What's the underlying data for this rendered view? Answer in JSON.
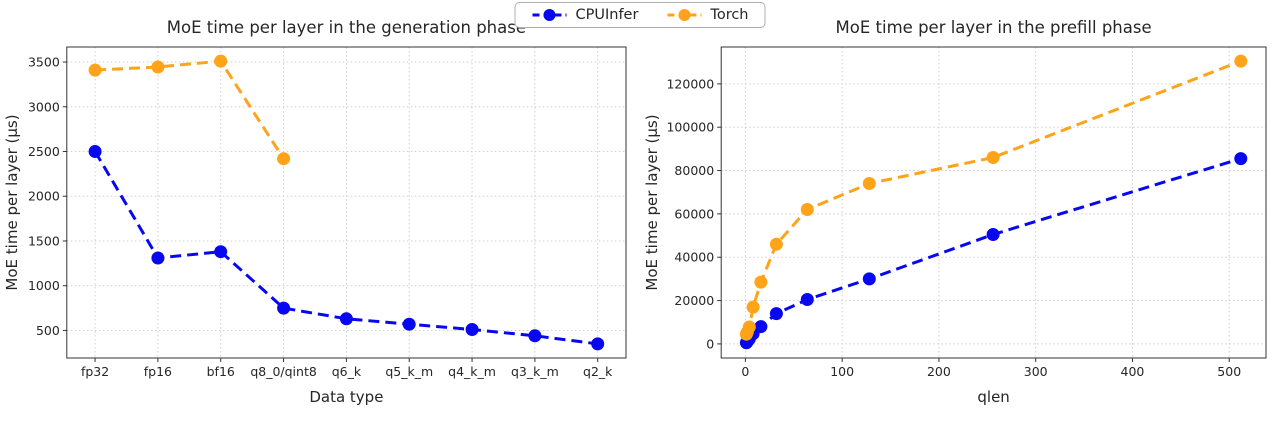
{
  "legend": {
    "items": [
      {
        "label": "CPUInfer",
        "color": "#0707f0"
      },
      {
        "label": "Torch",
        "color": "#ffa319"
      }
    ]
  },
  "chart_data": [
    {
      "type": "line",
      "title": "MoE time per layer in the generation phase",
      "xlabel": "Data type",
      "ylabel": "MoE time per layer (μs)",
      "categories": [
        "fp32",
        "fp16",
        "bf16",
        "q8_0/qint8",
        "q6_k",
        "q5_k_m",
        "q4_k_m",
        "q3_k_m",
        "q2_k"
      ],
      "yticks": [
        500,
        1000,
        1500,
        2000,
        2500,
        3000,
        3500
      ],
      "xlim": [
        -0.45,
        8.45
      ],
      "ylim": [
        192,
        3668
      ],
      "grid": true,
      "line_style": "dashed",
      "marker": "circle",
      "series": [
        {
          "name": "CPUInfer",
          "color": "#0707f0",
          "values": [
            2500,
            1310,
            1380,
            750,
            630,
            570,
            510,
            440,
            350
          ]
        },
        {
          "name": "Torch",
          "color": "#ffa319",
          "values": [
            3410,
            3445,
            3510,
            2420,
            null,
            null,
            null,
            null,
            null
          ]
        }
      ]
    },
    {
      "type": "line",
      "title": "MoE time per layer in the prefill phase",
      "xlabel": "qlen",
      "ylabel": "MoE time per layer (μs)",
      "x": [
        1,
        2,
        4,
        8,
        16,
        32,
        64,
        128,
        256,
        512
      ],
      "xticks": [
        0,
        100,
        200,
        300,
        400,
        500
      ],
      "yticks": [
        0,
        20000,
        40000,
        60000,
        80000,
        100000,
        120000
      ],
      "xlim": [
        -25,
        538
      ],
      "ylim": [
        -6500,
        137000
      ],
      "grid": true,
      "line_style": "dashed",
      "marker": "circle",
      "series": [
        {
          "name": "CPUInfer",
          "color": "#0707f0",
          "values": [
            500,
            1100,
            2300,
            4700,
            8000,
            14000,
            20500,
            30000,
            50500,
            85500
          ]
        },
        {
          "name": "Torch",
          "color": "#ffa319",
          "values": [
            4500,
            5500,
            7800,
            17000,
            28500,
            46000,
            62000,
            74000,
            86000,
            130500
          ]
        }
      ]
    }
  ]
}
